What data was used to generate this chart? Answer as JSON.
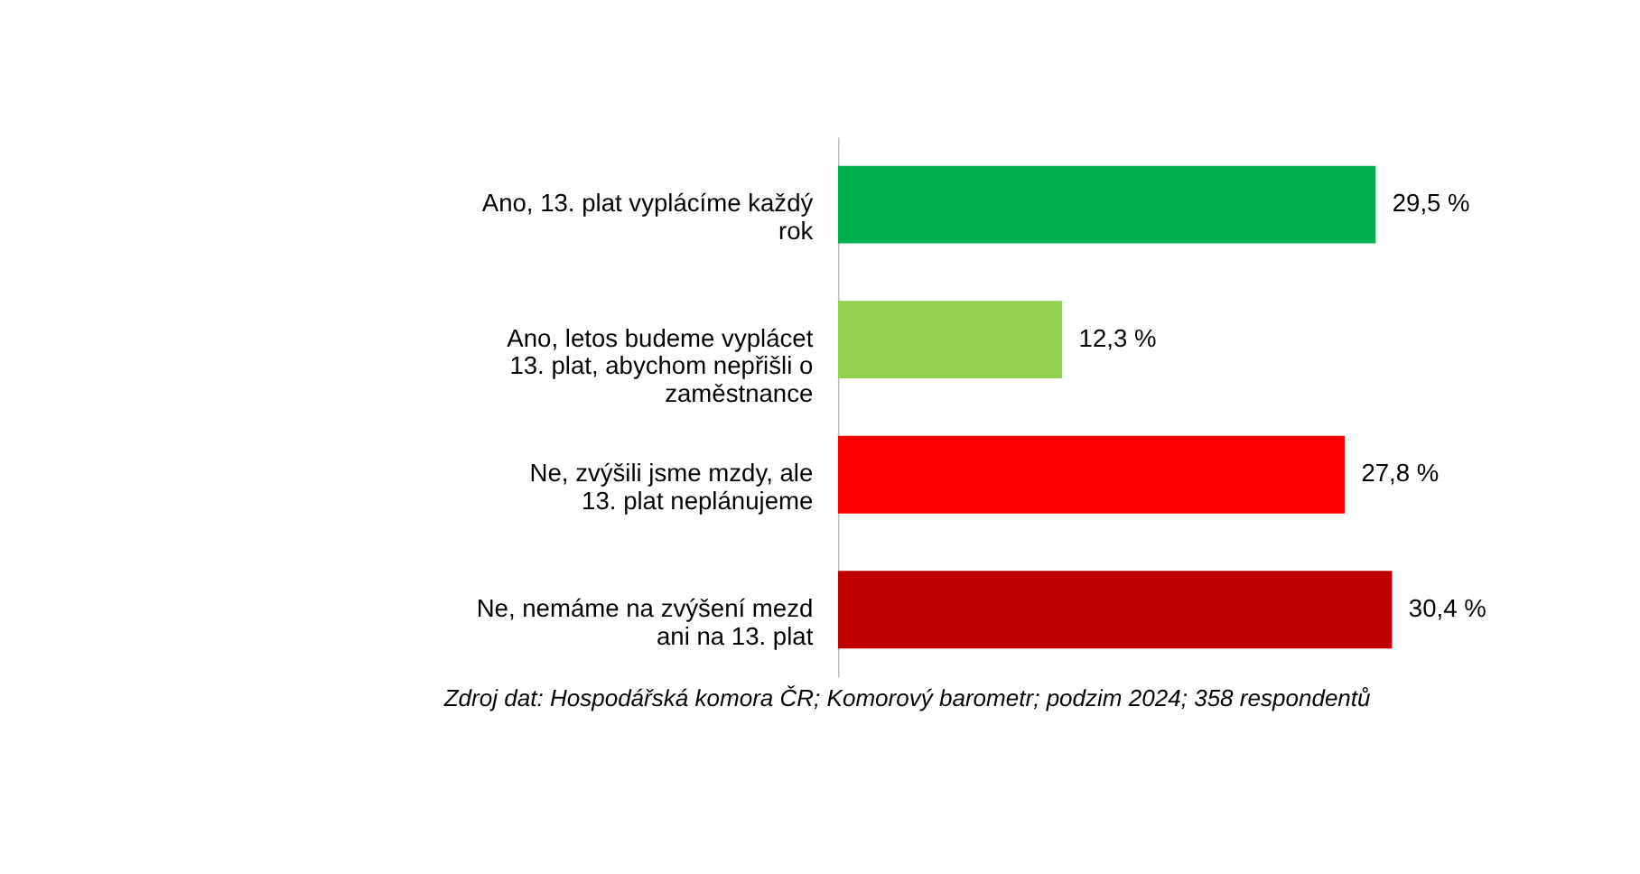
{
  "chart_data": {
    "type": "bar",
    "orientation": "horizontal",
    "categories": [
      "Ano, 13. plat vyplácíme každý rok",
      "Ano, letos budeme vyplácet 13. plat, abychom nepřišli o zaměstnance",
      "Ne, zvýšili jsme mzdy, ale 13. plat neplánujeme",
      "Ne, nemáme na zvýšení mezd ani na 13. plat"
    ],
    "values": [
      29.5,
      12.3,
      27.8,
      30.4
    ],
    "colors": [
      "#00b050",
      "#92d050",
      "#ff0000",
      "#c00000"
    ],
    "value_labels": [
      "29,5 %",
      "12,3 %",
      "27,8 %",
      "30,4 %"
    ],
    "annotations": [
      "Zdroj dat: Hospodářská komora ČR; Komorový barometr; podzim 2024; 358 respondentů"
    ]
  }
}
